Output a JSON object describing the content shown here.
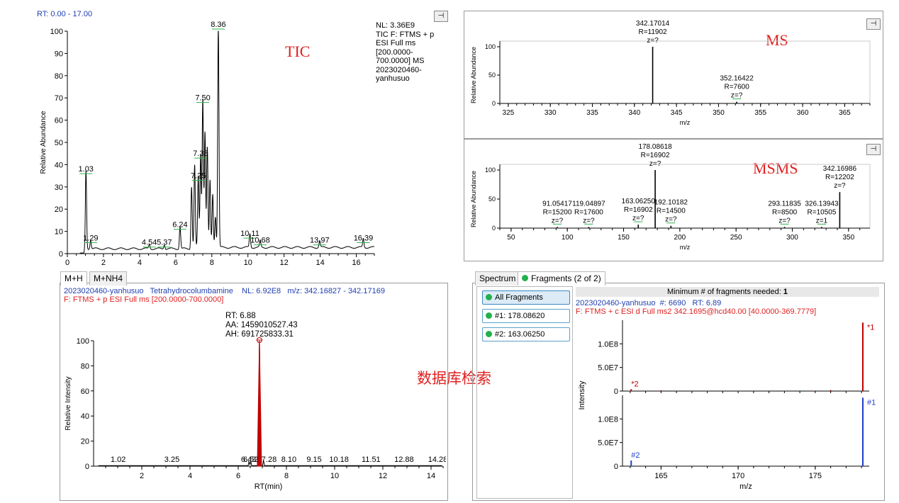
{
  "tic": {
    "rt_range": "RT: 0.00 - 17.00",
    "info": [
      "NL: 3.36E9",
      "TIC F: FTMS + p",
      "ESI Full ms",
      "[200.0000-",
      "700.0000]  MS",
      "2023020460-",
      "yanhusuo"
    ],
    "overlay_label": "TIC",
    "ylabel": "Relative Abundance"
  },
  "ms": {
    "overlay_label": "MS",
    "ylabel": "Relative Abundance",
    "xlabel": "m/z"
  },
  "msms": {
    "overlay_label": "MSMS",
    "ylabel": "Relative Abundance",
    "xlabel": "m/z"
  },
  "xic_panel": {
    "tabs": [
      "M+H",
      "M+NH4"
    ],
    "line1": "2023020460-yanhusuo   Tetrahydrocolumbamine    NL: 6.92E8   m/z: 342.16827 - 342.17169",
    "line2": "F: FTMS + p ESI Full ms [200.0000-700.0000]",
    "peak_info": [
      "RT: 6.88",
      "AA: 1459010527.43",
      "AH: 691725833.31"
    ],
    "ylabel": "Relative Intensity",
    "xlabel": "RT(min)",
    "overlay_label": "数据库检索"
  },
  "frag_panel": {
    "tabs": [
      "Spectrum",
      "Fragments (2 of 2)"
    ],
    "fragments": [
      "All Fragments",
      "#1: 178.08620",
      "#2: 163.06250"
    ],
    "min_label": "Minimum # of fragments needed:",
    "min_value": "1",
    "line1": "2023020460-yanhusuo  #: 6690   RT: 6.89",
    "line2": "F: FTMS + c ESI d Full ms2 342.1695@hcd40.00 [40.0000-369.7779]",
    "ylabel": "Intensity",
    "xlabel": "m/z"
  },
  "chart_data": [
    {
      "type": "line",
      "id": "tic",
      "xlim": [
        0,
        17
      ],
      "ylim": [
        0,
        100
      ],
      "x_ticks": [
        0,
        2,
        4,
        6,
        8,
        10,
        12,
        14,
        16
      ],
      "y_ticks": [
        0,
        10,
        20,
        30,
        40,
        50,
        60,
        70,
        80,
        90,
        100
      ],
      "peaks": [
        {
          "x": 1.03,
          "y": 35,
          "label": "1.03"
        },
        {
          "x": 1.29,
          "y": 4,
          "label": "1.29"
        },
        {
          "x": 4.54,
          "y": 2,
          "label": "4.54"
        },
        {
          "x": 5.37,
          "y": 2,
          "label": "5.37"
        },
        {
          "x": 6.24,
          "y": 10,
          "label": "6.24"
        },
        {
          "x": 6.88,
          "y": 28,
          "label": ""
        },
        {
          "x": 7.05,
          "y": 37,
          "label": ""
        },
        {
          "x": 7.25,
          "y": 32,
          "label": "7.25"
        },
        {
          "x": 7.38,
          "y": 42,
          "label": "7.38"
        },
        {
          "x": 7.5,
          "y": 67,
          "label": "7.50"
        },
        {
          "x": 7.62,
          "y": 52,
          "label": ""
        },
        {
          "x": 7.75,
          "y": 45,
          "label": ""
        },
        {
          "x": 7.9,
          "y": 30,
          "label": ""
        },
        {
          "x": 8.05,
          "y": 24,
          "label": ""
        },
        {
          "x": 8.2,
          "y": 14,
          "label": ""
        },
        {
          "x": 8.36,
          "y": 100,
          "label": "8.36"
        },
        {
          "x": 10.11,
          "y": 6,
          "label": "10.11"
        },
        {
          "x": 10.68,
          "y": 3,
          "label": "10.68"
        },
        {
          "x": 13.97,
          "y": 3,
          "label": "13.97"
        },
        {
          "x": 16.39,
          "y": 4,
          "label": "16.39"
        }
      ]
    },
    {
      "type": "bar",
      "id": "ms",
      "xlim": [
        324,
        368
      ],
      "ylim": [
        0,
        100
      ],
      "x_ticks": [
        325,
        330,
        335,
        340,
        345,
        350,
        355,
        360,
        365
      ],
      "y_ticks": [
        0,
        50,
        100
      ],
      "peaks": [
        {
          "x": 342.17014,
          "y": 100,
          "label": [
            "342.17014",
            "R=11902",
            "z=?"
          ]
        },
        {
          "x": 352.16422,
          "y": 3,
          "label": [
            "352.16422",
            "R=7600",
            "z=?"
          ]
        }
      ]
    },
    {
      "type": "bar",
      "id": "msms",
      "xlim": [
        40,
        369
      ],
      "ylim": [
        0,
        100
      ],
      "x_ticks": [
        50,
        100,
        150,
        200,
        250,
        300,
        350
      ],
      "y_ticks": [
        0,
        50,
        100
      ],
      "peaks": [
        {
          "x": 91.05417,
          "y": 2,
          "label": [
            "91.05417",
            "R=15200",
            "z=?"
          ]
        },
        {
          "x": 119.04897,
          "y": 2,
          "label": [
            "119.04897",
            "R=17600",
            "z=?"
          ]
        },
        {
          "x": 163.0625,
          "y": 6,
          "label": [
            "163.06250",
            "R=16902",
            "z=?"
          ]
        },
        {
          "x": 178.08618,
          "y": 100,
          "label": [
            "178.08618",
            "R=16902",
            "z=?"
          ]
        },
        {
          "x": 192.10182,
          "y": 4,
          "label": [
            "192.10182",
            "R=14500",
            "z=?"
          ]
        },
        {
          "x": 293.11835,
          "y": 2,
          "label": [
            "293.11835",
            "R=8500",
            "z=?"
          ]
        },
        {
          "x": 326.13943,
          "y": 2,
          "label": [
            "326.13943",
            "R=10505",
            "z=1"
          ]
        },
        {
          "x": 342.16986,
          "y": 62,
          "label": [
            "342.16986",
            "R=12202",
            "z=?"
          ]
        }
      ]
    },
    {
      "type": "line",
      "id": "xic",
      "xlim": [
        0,
        14.5
      ],
      "ylim": [
        0,
        100
      ],
      "x_ticks": [
        2,
        4,
        6,
        8,
        10,
        12,
        14
      ],
      "y_ticks": [
        0,
        20,
        40,
        60,
        80,
        100
      ],
      "labels": [
        {
          "x": 1.02,
          "text": "1.02"
        },
        {
          "x": 3.25,
          "text": "3.25"
        },
        {
          "x": 6.43,
          "text": "6.43"
        },
        {
          "x": 6.52,
          "text": "6.52"
        },
        {
          "x": 7.28,
          "text": "7.28"
        },
        {
          "x": 8.1,
          "text": "8.10"
        },
        {
          "x": 9.15,
          "text": "9.15"
        },
        {
          "x": 10.18,
          "text": "10.18"
        },
        {
          "x": 11.51,
          "text": "11.51"
        },
        {
          "x": 12.88,
          "text": "12.88"
        },
        {
          "x": 14.28,
          "text": "14.28"
        }
      ],
      "peaks": [
        {
          "x": 6.45,
          "y": 3
        },
        {
          "x": 6.52,
          "y": 3
        },
        {
          "x": 6.88,
          "y": 100
        },
        {
          "x": 7.05,
          "y": 4
        }
      ]
    },
    {
      "type": "bar",
      "id": "frag_top",
      "xlim": [
        162.5,
        178.5
      ],
      "ylim": [
        0,
        150000000.0
      ],
      "y_ticks": [
        "0",
        "5.0E7",
        "1.0E8"
      ],
      "y_tick_values": [
        0,
        50000000.0,
        100000000.0
      ],
      "peaks": [
        {
          "x": 163.0625,
          "y": 4000000.0,
          "label": "*2"
        },
        {
          "x": 165.0,
          "y": 1500000.0,
          "label": ""
        },
        {
          "x": 175.0,
          "y": 1000000.0,
          "label": ""
        },
        {
          "x": 176.0,
          "y": 2000000.0,
          "label": ""
        },
        {
          "x": 178.0862,
          "y": 145000000.0,
          "label": "*1"
        }
      ]
    },
    {
      "type": "bar",
      "id": "frag_bottom",
      "xlim": [
        162.5,
        178.5
      ],
      "ylim": [
        0,
        150000000.0
      ],
      "x_ticks": [
        165,
        170,
        175
      ],
      "y_ticks": [
        "0",
        "5.0E7",
        "1.0E8"
      ],
      "y_tick_values": [
        0,
        50000000.0,
        100000000.0
      ],
      "peaks": [
        {
          "x": 163.0625,
          "y": 12000000.0,
          "label": "#2"
        },
        {
          "x": 178.0862,
          "y": 145000000.0,
          "label": "#1"
        }
      ]
    }
  ]
}
